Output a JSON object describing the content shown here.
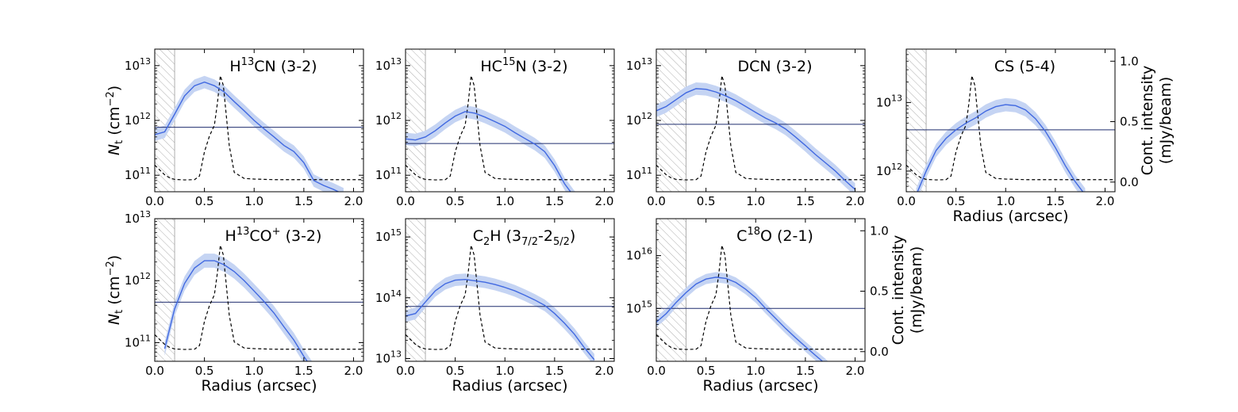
{
  "figure": {
    "colors": {
      "profile": "#4169e1",
      "band": "#c5d4f3",
      "noise_line": "#1f2d6e",
      "continuum": "#000000",
      "hatch": "#9a9a9a"
    },
    "labels": {
      "ylabel_left": "N",
      "ylabel_left_sub": "t",
      "ylabel_left_unit": " (cm",
      "ylabel_left_exp": "−2",
      "ylabel_left_close": ")",
      "ylabel_right_1": "Cont. intensity",
      "ylabel_right_2": "(mJy/beam)",
      "xlabel": "Radius (arcsec)"
    }
  },
  "chart_data": [
    {
      "type": "line",
      "title_parts": [
        {
          "t": "H"
        },
        {
          "t": "13",
          "s": "sup"
        },
        {
          "t": "CN (3-2)"
        }
      ],
      "xlim": [
        0,
        2.1
      ],
      "ylim": [
        50000000000,
        20000000000000
      ],
      "yscale": "log",
      "xticks": [
        0.0,
        0.5,
        1.0,
        1.5,
        2.0
      ],
      "xtick_labels": [
        "0.0",
        "0.5",
        "1.0",
        "1.5",
        "2.0"
      ],
      "yticks": [
        {
          "base": "10",
          "exp": "11",
          "v": 100000000000
        },
        {
          "base": "10",
          "exp": "12",
          "v": 1000000000000
        },
        {
          "base": "10",
          "exp": "13",
          "v": 10000000000000
        }
      ],
      "hatch_to": 0.2,
      "noise_level": 750000000000,
      "profile_x": [
        0,
        0.1,
        0.2,
        0.3,
        0.4,
        0.5,
        0.6,
        0.7,
        0.8,
        0.9,
        1.0,
        1.1,
        1.2,
        1.3,
        1.4,
        1.5,
        1.6,
        1.7,
        1.8,
        1.9
      ],
      "profile_y": [
        550000000000,
        620000000000,
        1300000000000,
        2800000000000,
        4300000000000,
        5000000000000,
        4300000000000,
        3300000000000,
        2200000000000,
        1500000000000,
        1000000000000,
        700000000000,
        500000000000,
        350000000000,
        270000000000,
        170000000000,
        80000000000,
        65000000000,
        55000000000,
        45000000000
      ],
      "band_factor": 1.3,
      "show_xlabel": false,
      "show_ylabel_left": true,
      "show_right_axis": false
    },
    {
      "type": "line",
      "title_parts": [
        {
          "t": "HC"
        },
        {
          "t": "15",
          "s": "sup"
        },
        {
          "t": "N (3-2)"
        }
      ],
      "xlim": [
        0,
        2.1
      ],
      "ylim": [
        50000000000,
        20000000000000
      ],
      "yscale": "log",
      "xticks": [
        0.0,
        0.5,
        1.0,
        1.5,
        2.0
      ],
      "xtick_labels": [
        "0.0",
        "0.5",
        "1.0",
        "1.5",
        "2.0"
      ],
      "yticks": [
        {
          "base": "10",
          "exp": "11",
          "v": 100000000000
        },
        {
          "base": "10",
          "exp": "12",
          "v": 1000000000000
        },
        {
          "base": "10",
          "exp": "13",
          "v": 10000000000000
        }
      ],
      "hatch_to": 0.2,
      "noise_level": 380000000000,
      "profile_x": [
        0,
        0.1,
        0.2,
        0.3,
        0.4,
        0.5,
        0.6,
        0.7,
        0.8,
        0.9,
        1.0,
        1.1,
        1.2,
        1.3,
        1.4,
        1.5,
        1.6,
        1.7,
        1.8
      ],
      "profile_y": [
        460000000000,
        440000000000,
        500000000000,
        650000000000,
        900000000000,
        1200000000000,
        1450000000000,
        1350000000000,
        1150000000000,
        950000000000,
        780000000000,
        600000000000,
        470000000000,
        370000000000,
        270000000000,
        150000000000,
        70000000000,
        40000000000,
        30000000000
      ],
      "band_factor": 1.3,
      "show_xlabel": false,
      "show_ylabel_left": false,
      "show_right_axis": false
    },
    {
      "type": "line",
      "title_parts": [
        {
          "t": "DCN (3-2)"
        }
      ],
      "xlim": [
        0,
        2.1
      ],
      "ylim": [
        50000000000,
        20000000000000
      ],
      "yscale": "log",
      "xticks": [
        0.0,
        0.5,
        1.0,
        1.5,
        2.0
      ],
      "xtick_labels": [
        "0.0",
        "0.5",
        "1.0",
        "1.5",
        "2.0"
      ],
      "yticks": [
        {
          "base": "10",
          "exp": "11",
          "v": 100000000000
        },
        {
          "base": "10",
          "exp": "12",
          "v": 1000000000000
        },
        {
          "base": "10",
          "exp": "13",
          "v": 10000000000000
        }
      ],
      "hatch_to": 0.3,
      "noise_level": 850000000000,
      "profile_x": [
        0,
        0.1,
        0.2,
        0.3,
        0.4,
        0.5,
        0.6,
        0.7,
        0.8,
        0.9,
        1.0,
        1.1,
        1.2,
        1.3,
        1.4,
        1.5,
        1.6,
        1.7,
        1.8,
        1.9,
        2.0
      ],
      "profile_y": [
        1500000000000,
        1800000000000,
        2400000000000,
        3200000000000,
        3800000000000,
        3700000000000,
        3300000000000,
        2800000000000,
        2300000000000,
        1800000000000,
        1400000000000,
        1100000000000,
        900000000000,
        700000000000,
        500000000000,
        350000000000,
        240000000000,
        170000000000,
        120000000000,
        80000000000,
        55000000000
      ],
      "band_factor": 1.3,
      "show_xlabel": false,
      "show_ylabel_left": false,
      "show_right_axis": false
    },
    {
      "type": "line",
      "title_parts": [
        {
          "t": "CS (5-4)"
        }
      ],
      "xlim": [
        0,
        2.1
      ],
      "ylim": [
        500000000000,
        60000000000000
      ],
      "yscale": "log",
      "xticks": [
        0.0,
        0.5,
        1.0,
        1.5,
        2.0
      ],
      "xtick_labels": [
        "0.0",
        "0.5",
        "1.0",
        "1.5",
        "2.0"
      ],
      "yticks": [
        {
          "base": "10",
          "exp": "12",
          "v": 1000000000000
        },
        {
          "base": "10",
          "exp": "13",
          "v": 10000000000000
        }
      ],
      "hatch_to": 0.2,
      "noise_level": 4000000000000,
      "profile_x": [
        0.1,
        0.2,
        0.3,
        0.4,
        0.5,
        0.6,
        0.7,
        0.8,
        0.9,
        1.0,
        1.1,
        1.2,
        1.3,
        1.4,
        1.5,
        1.6,
        1.7,
        1.8
      ],
      "profile_y": [
        450000000000,
        1000000000000,
        2000000000000,
        3000000000000,
        4000000000000,
        5000000000000,
        6000000000000,
        7500000000000,
        8700000000000,
        9300000000000,
        9000000000000,
        7800000000000,
        5800000000000,
        3800000000000,
        2200000000000,
        1200000000000,
        700000000000,
        450000000000
      ],
      "band_factor": 1.25,
      "show_xlabel": true,
      "show_ylabel_left": false,
      "show_right_axis": true
    },
    {
      "type": "line",
      "title_parts": [
        {
          "t": "H"
        },
        {
          "t": "13",
          "s": "sup"
        },
        {
          "t": "CO"
        },
        {
          "t": "+",
          "s": "sup"
        },
        {
          "t": " (3-2)"
        }
      ],
      "xlim": [
        0,
        2.1
      ],
      "ylim": [
        50000000000,
        10000000000000
      ],
      "yscale": "log",
      "xticks": [
        0.0,
        0.5,
        1.0,
        1.5,
        2.0
      ],
      "xtick_labels": [
        "0.0",
        "0.5",
        "1.0",
        "1.5",
        "2.0"
      ],
      "yticks": [
        {
          "base": "10",
          "exp": "11",
          "v": 100000000000
        },
        {
          "base": "10",
          "exp": "12",
          "v": 1000000000000
        },
        {
          "base": "10",
          "exp": "13",
          "v": 10000000000000
        }
      ],
      "hatch_to": 0.2,
      "noise_level": 450000000000,
      "profile_x": [
        0.1,
        0.2,
        0.3,
        0.4,
        0.5,
        0.6,
        0.7,
        0.8,
        0.9,
        1.0,
        1.1,
        1.2,
        1.3,
        1.4,
        1.5,
        1.6
      ],
      "profile_y": [
        80000000000,
        350000000000,
        900000000000,
        1600000000000,
        2100000000000,
        2100000000000,
        1800000000000,
        1400000000000,
        1000000000000,
        680000000000,
        460000000000,
        300000000000,
        180000000000,
        110000000000,
        60000000000,
        35000000000
      ],
      "band_factor": 1.3,
      "show_xlabel": true,
      "show_ylabel_left": true,
      "show_right_axis": false
    },
    {
      "type": "line",
      "title_parts": [
        {
          "t": "C"
        },
        {
          "t": "2",
          "s": "sub"
        },
        {
          "t": "H (3"
        },
        {
          "t": "7/2",
          "s": "sub"
        },
        {
          "t": "-2"
        },
        {
          "t": "5/2",
          "s": "sub"
        },
        {
          "t": ")"
        }
      ],
      "xlim": [
        0,
        2.1
      ],
      "ylim": [
        9000000000000,
        2000000000000000
      ],
      "yscale": "log",
      "xticks": [
        0.0,
        0.5,
        1.0,
        1.5,
        2.0
      ],
      "xtick_labels": [
        "0.0",
        "0.5",
        "1.0",
        "1.5",
        "2.0"
      ],
      "yticks": [
        {
          "base": "10",
          "exp": "13",
          "v": 10000000000000
        },
        {
          "base": "10",
          "exp": "14",
          "v": 100000000000000
        },
        {
          "base": "10",
          "exp": "15",
          "v": 1000000000000000
        }
      ],
      "hatch_to": 0.2,
      "noise_level": 72000000000000,
      "profile_x": [
        0,
        0.1,
        0.2,
        0.3,
        0.4,
        0.5,
        0.6,
        0.7,
        0.8,
        0.9,
        1.0,
        1.1,
        1.2,
        1.3,
        1.4,
        1.5,
        1.6,
        1.7,
        1.8,
        1.9
      ],
      "profile_y": [
        50000000000000,
        55000000000000,
        85000000000000,
        130000000000000,
        170000000000000,
        195000000000000,
        200000000000000,
        190000000000000,
        180000000000000,
        165000000000000,
        148000000000000,
        130000000000000,
        110000000000000,
        92000000000000,
        75000000000000,
        55000000000000,
        38000000000000,
        25000000000000,
        15000000000000,
        9500000000000
      ],
      "band_factor": 1.25,
      "show_xlabel": true,
      "show_ylabel_left": false,
      "show_right_axis": false
    },
    {
      "type": "line",
      "title_parts": [
        {
          "t": "C"
        },
        {
          "t": "18",
          "s": "sup"
        },
        {
          "t": "O (2-1)"
        }
      ],
      "xlim": [
        0,
        2.1
      ],
      "ylim": [
        100000000000000,
        50000000000000000
      ],
      "yscale": "log",
      "xticks": [
        0.0,
        0.5,
        1.0,
        1.5,
        2.0
      ],
      "xtick_labels": [
        "0.0",
        "0.5",
        "1.0",
        "1.5",
        "2.0"
      ],
      "yticks": [
        {
          "base": "10",
          "exp": "15",
          "v": 1000000000000000
        },
        {
          "base": "10",
          "exp": "16",
          "v": 10000000000000000
        }
      ],
      "hatch_to": 0.3,
      "noise_level": 1000000000000000,
      "profile_x": [
        0,
        0.1,
        0.2,
        0.3,
        0.4,
        0.5,
        0.6,
        0.7,
        0.8,
        0.9,
        1.0,
        1.1,
        1.2,
        1.3,
        1.4,
        1.5,
        1.6,
        1.7,
        1.8
      ],
      "profile_y": [
        550000000000000,
        800000000000000,
        1300000000000000,
        2000000000000000,
        2900000000000000,
        3600000000000000,
        3900000000000000,
        3700000000000000,
        3100000000000000,
        2300000000000000,
        1600000000000000,
        1000000000000000,
        650000000000000,
        420000000000000,
        280000000000000,
        190000000000000,
        130000000000000,
        90000000000000,
        60000000000000
      ],
      "band_factor": 1.25,
      "show_xlabel": true,
      "show_ylabel_left": false,
      "show_right_axis": true
    }
  ],
  "continuum": {
    "ylim": [
      -0.08,
      1.1
    ],
    "right_ticks": [
      0.0,
      0.5,
      1.0
    ],
    "right_tick_labels": [
      "0.0",
      "0.5",
      "1.0"
    ],
    "x": [
      0,
      0.05,
      0.1,
      0.15,
      0.2,
      0.3,
      0.4,
      0.45,
      0.5,
      0.55,
      0.6,
      0.63,
      0.66,
      0.69,
      0.72,
      0.75,
      0.8,
      0.9,
      1.0,
      1.2,
      1.5,
      2.0,
      2.1
    ],
    "value": [
      0.14,
      0.1,
      0.06,
      0.035,
      0.022,
      0.018,
      0.02,
      0.05,
      0.25,
      0.38,
      0.47,
      0.65,
      0.88,
      0.8,
      0.55,
      0.3,
      0.08,
      0.03,
      0.025,
      0.02,
      0.02,
      0.02,
      0.02
    ]
  }
}
